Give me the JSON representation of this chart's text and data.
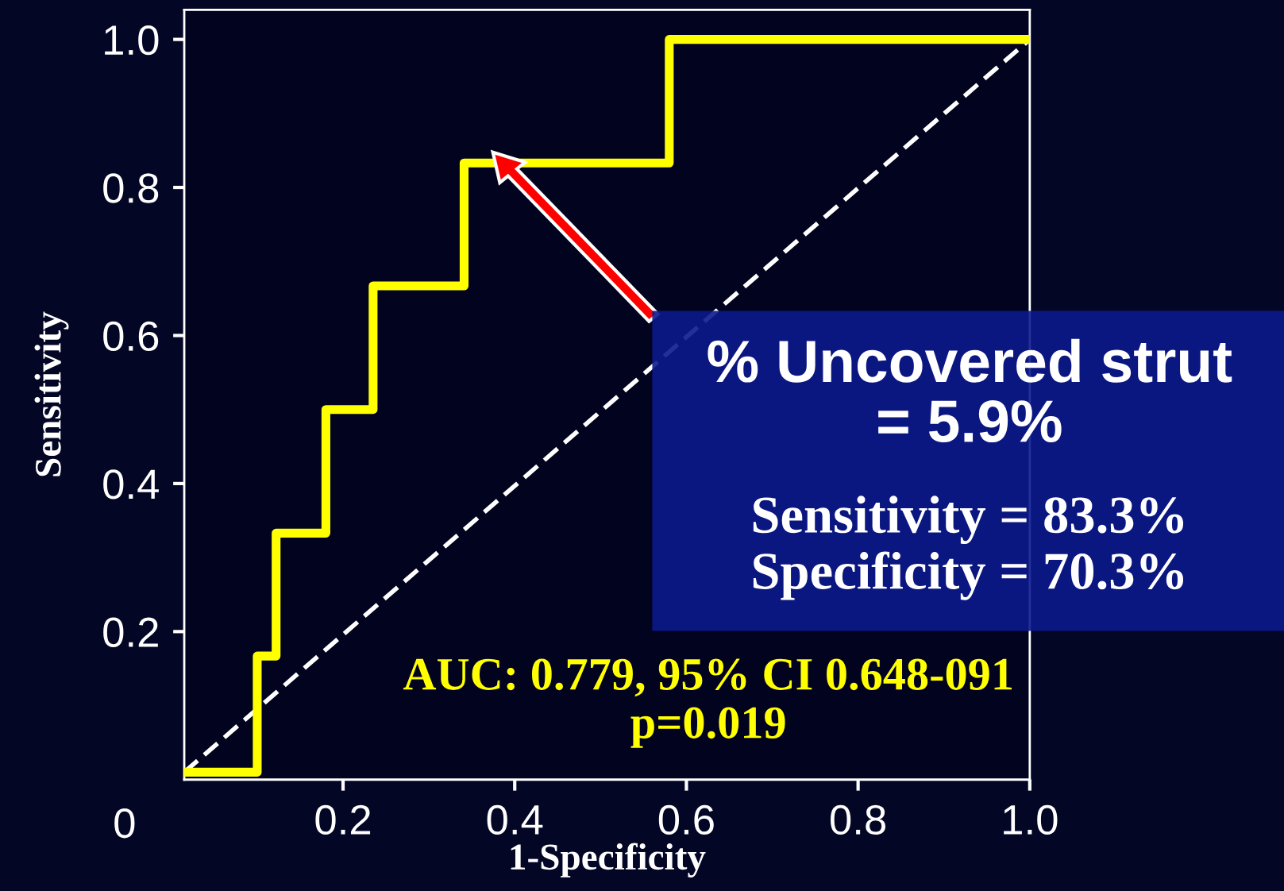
{
  "chart_data": {
    "type": "step",
    "xlabel": "1-Specificity",
    "ylabel": "Sensitivity",
    "xlim": [
      0.015,
      1.0
    ],
    "ylim": [
      0,
      1.04
    ],
    "xticks": [
      0.2,
      0.4,
      0.6,
      0.8,
      {
        "value": 1.0,
        "label": "1.0"
      }
    ],
    "yticks": [
      0.2,
      0.4,
      0.6,
      0.8,
      {
        "value": 1.0,
        "label": "1.0"
      }
    ],
    "grid": false,
    "legend": false,
    "series": [
      {
        "color": "#ffff00",
        "x": [
          0.015,
          0.1,
          0.122,
          0.18,
          0.235,
          0.341,
          0.58,
          1.0
        ],
        "values": [
          0.01,
          0.167,
          0.333,
          0.5,
          0.667,
          0.833,
          1.0,
          1.0
        ]
      },
      {
        "type": "line",
        "color": "#ffffff",
        "line_style": "dashed",
        "x": [
          0.015,
          1.0
        ],
        "values": [
          0.01,
          1.0
        ]
      }
    ],
    "annotations": [
      "0",
      "% Uncovered strut\n= 5.9%",
      "Sensitivity = 83.3%\nSpecificity = 70.3%",
      "AUC: 0.779, 95% CI 0.648-091\np=0.019"
    ]
  }
}
